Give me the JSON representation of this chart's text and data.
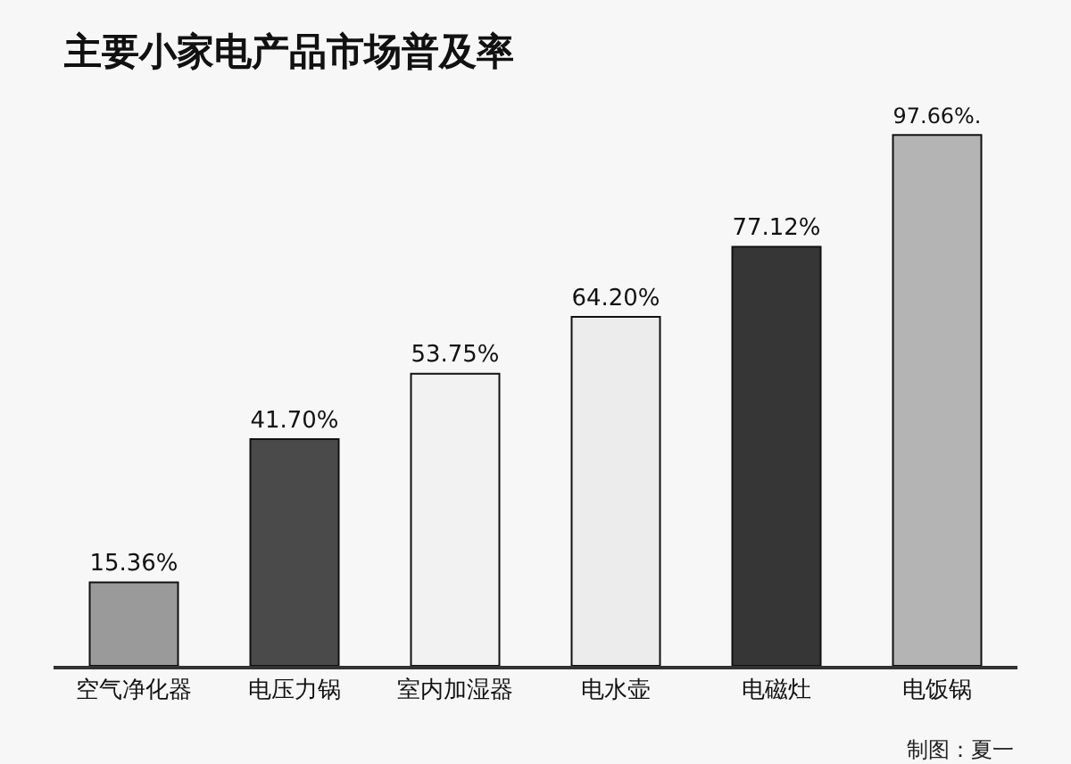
{
  "chart_data": {
    "type": "bar",
    "title": "主要小家电产品市场普及率",
    "categories": [
      "空气净化器",
      "电压力锅",
      "室内加湿器",
      "电水壶",
      "电磁灶",
      "电饭锅"
    ],
    "values": [
      15.36,
      41.7,
      53.75,
      64.2,
      77.12,
      97.66
    ],
    "colors": [
      "#9a9a9a",
      "#4a4a4a",
      "#f2f2f2",
      "#ececec",
      "#363636",
      "#b4b4b4"
    ],
    "value_labels": [
      "15.36%",
      "41.70%",
      "53.75%",
      "64.20%",
      "77.12%",
      "97.66%."
    ],
    "annotations": [
      "制图：夏一"
    ]
  }
}
